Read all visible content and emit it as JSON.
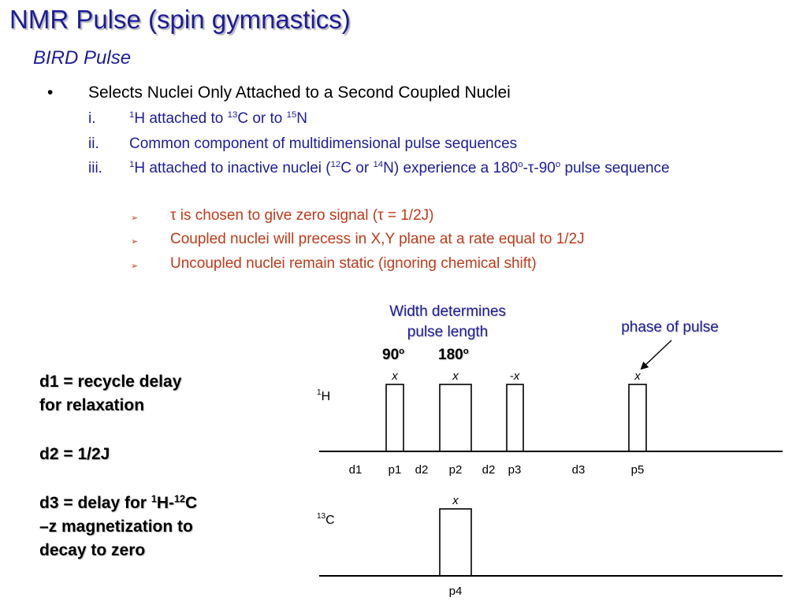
{
  "title": "NMR Pulse (spin gymnastics)",
  "subtitle": "BIRD Pulse",
  "bullet": {
    "marker": "•",
    "text": "Selects Nuclei Only Attached to a Second Coupled Nuclei"
  },
  "items": [
    {
      "num": "i.",
      "pre": "1",
      "a": "H attached to ",
      "sup2": "13",
      "b": "C or to ",
      "sup3": "15",
      "c": "N"
    },
    {
      "num": "ii.",
      "text": "Common component of multidimensional pulse sequences"
    },
    {
      "num": "iii.",
      "s1": "1",
      "t1": "H attached to inactive nuclei (",
      "s2": "12",
      "t2": "C or ",
      "s3": "14",
      "t3": "N) experience a 180",
      "s4": "o",
      "t4": "-τ-90",
      "s5": "o",
      "t5": " pulse sequence"
    }
  ],
  "sub_bullets": [
    {
      "marker": "➢",
      "text": "τ is chosen to give zero signal (τ = 1/2J)"
    },
    {
      "marker": "➢",
      "text": "Coupled nuclei will precess in X,Y plane at a rate equal to 1/2J"
    },
    {
      "marker": "➢",
      "text": "Uncoupled nuclei remain static (ignoring chemical shift)"
    }
  ],
  "annotations": {
    "width_line1": "Width determines",
    "width_line2": "pulse length",
    "phase": "phase of pulse",
    "deg90": "90",
    "deg180": "180",
    "deg_sup": "o"
  },
  "notes": {
    "d1_line1": "d1 = recycle delay",
    "d1_line2": "for relaxation",
    "d2": "d2 = 1/2J",
    "d3_a": "d3 = delay for ",
    "d3_sup1": "1",
    "d3_b": "H-",
    "d3_sup2": "12",
    "d3_c": "C",
    "d3_line2": "–z magnetization to",
    "d3_line3": "decay to zero"
  },
  "diagram": {
    "channel_h": {
      "sup": "1",
      "label": "H"
    },
    "channel_c": {
      "sup": "13",
      "label": "C"
    },
    "phases_h": [
      "x",
      "x",
      "-x",
      "x"
    ],
    "phase_c": "x",
    "delays_h": [
      "d1",
      "p1",
      "d2",
      "p2",
      "d2",
      "p3",
      "d3",
      "p5"
    ],
    "delay_c": "p4"
  }
}
